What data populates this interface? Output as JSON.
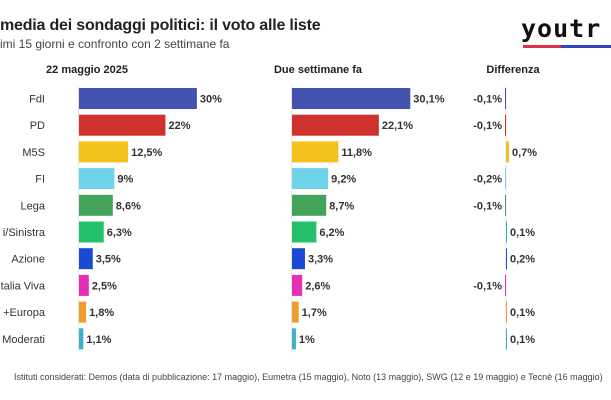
{
  "title": "media dei sondaggi politici: il voto alle liste",
  "subtitle": "imi 15 giorni e confronto con 2 settimane fa",
  "logo": {
    "text": "youtr",
    "colors": [
      "#e0304a",
      "#2f46c4"
    ]
  },
  "footer": "Istituti considerati: Demos (data di pubblicazione: 17 maggio), Eumetra (15 maggio), Noto (13 maggio), SWG (12 e 19 maggio) e Tecnè (16 maggio)",
  "chart_data": {
    "type": "bar",
    "orientation": "horizontal",
    "categories": [
      "FdI",
      "PD",
      "M5S",
      "FI",
      "Lega",
      "i/Sinistra",
      "Azione",
      "talia Viva",
      "+Europa",
      "Moderati"
    ],
    "colors": [
      "#4452b0",
      "#d0312d",
      "#f5c21b",
      "#6fd4ea",
      "#43a35a",
      "#22c16a",
      "#1c48d6",
      "#e52fb5",
      "#f29a2e",
      "#3bb0c9"
    ],
    "series": [
      {
        "name": "22 maggio 2025",
        "values": [
          30,
          22,
          12.5,
          9,
          8.6,
          6.3,
          3.5,
          2.5,
          1.8,
          1.1
        ],
        "labels": [
          "30%",
          "22%",
          "12,5%",
          "9%",
          "8,6%",
          "6,3%",
          "3,5%",
          "2,5%",
          "1,8%",
          "1,1%"
        ]
      },
      {
        "name": "Due settimane fa",
        "values": [
          30.1,
          22.1,
          11.8,
          9.2,
          8.7,
          6.2,
          3.3,
          2.6,
          1.7,
          1
        ],
        "labels": [
          "30,1%",
          "22,1%",
          "11,8%",
          "9,2%",
          "8,7%",
          "6,2%",
          "3,3%",
          "2,6%",
          "1,7%",
          "1%"
        ]
      },
      {
        "name": "Differenza",
        "values": [
          -0.1,
          -0.1,
          0.7,
          -0.2,
          -0.1,
          0.1,
          0.2,
          -0.1,
          0.1,
          0.1
        ],
        "labels": [
          "-0,1%",
          "-0,1%",
          "0,7%",
          "-0,2%",
          "-0,1%",
          "0,1%",
          "0,2%",
          "-0,1%",
          "0,1%",
          "0,1%"
        ]
      }
    ],
    "grid": false,
    "legend": "none"
  }
}
